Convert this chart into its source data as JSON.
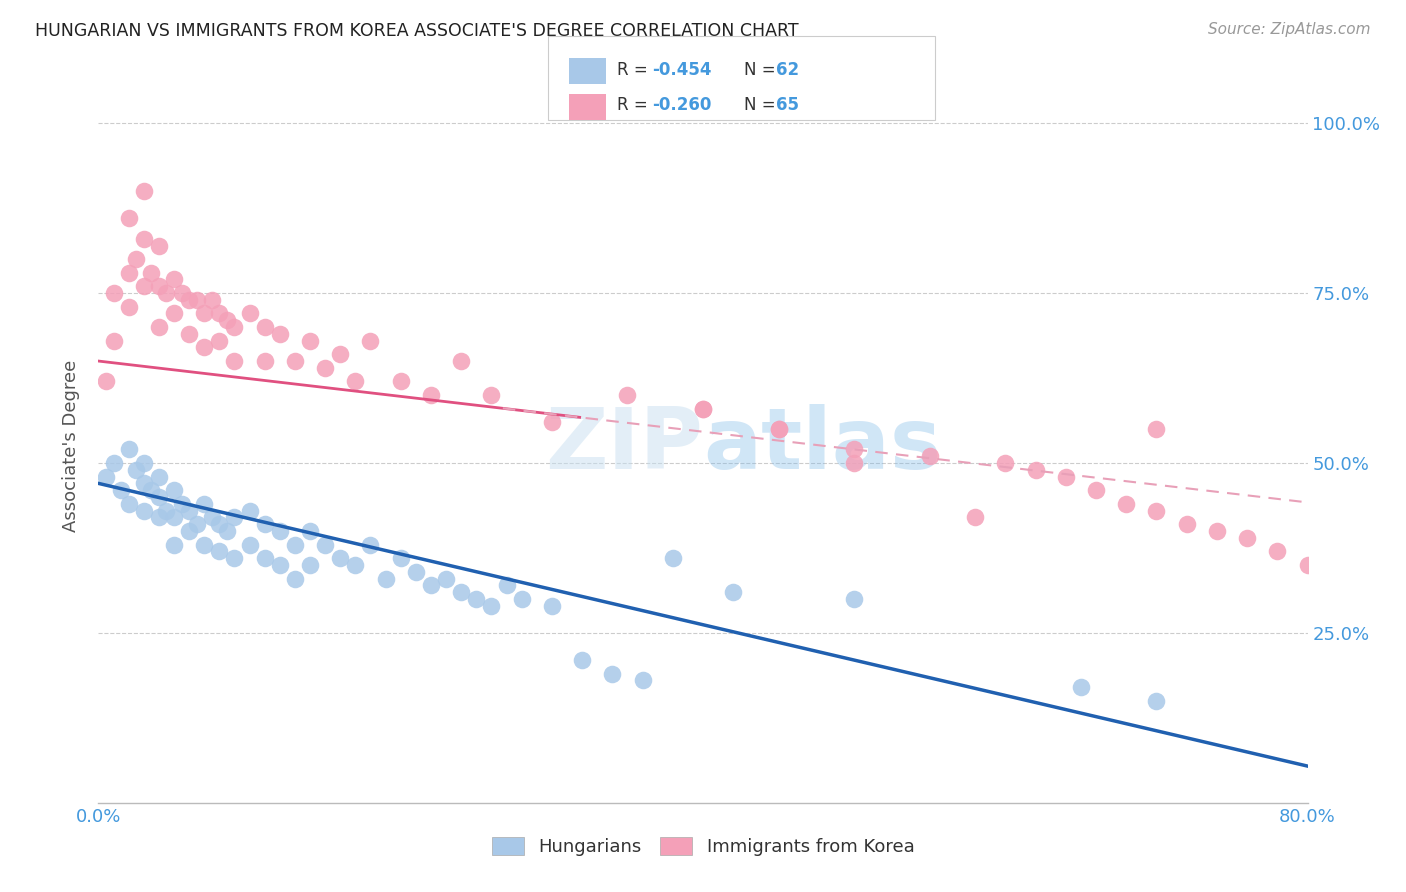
{
  "title": "HUNGARIAN VS IMMIGRANTS FROM KOREA ASSOCIATE'S DEGREE CORRELATION CHART",
  "source": "Source: ZipAtlas.com",
  "ylabel": "Associate's Degree",
  "watermark": "ZIPatlas",
  "legend_label1": "Hungarians",
  "legend_label2": "Immigrants from Korea",
  "color_blue": "#a8c8e8",
  "color_pink": "#f4a0b8",
  "color_blue_line": "#2060b0",
  "color_pink_line": "#e05080",
  "color_pink_dash": "#e8a0b8",
  "color_axis_labels": "#4499dd",
  "color_grid": "#cccccc",
  "blue_intercept": 0.47,
  "blue_slope": -0.52,
  "pink_intercept": 0.65,
  "pink_slope": -0.26,
  "blue_x": [
    0.005,
    0.01,
    0.015,
    0.02,
    0.02,
    0.025,
    0.03,
    0.03,
    0.03,
    0.035,
    0.04,
    0.04,
    0.04,
    0.045,
    0.05,
    0.05,
    0.05,
    0.055,
    0.06,
    0.06,
    0.065,
    0.07,
    0.07,
    0.075,
    0.08,
    0.08,
    0.085,
    0.09,
    0.09,
    0.1,
    0.1,
    0.11,
    0.11,
    0.12,
    0.12,
    0.13,
    0.13,
    0.14,
    0.14,
    0.15,
    0.16,
    0.17,
    0.18,
    0.19,
    0.2,
    0.21,
    0.22,
    0.23,
    0.24,
    0.25,
    0.26,
    0.27,
    0.28,
    0.3,
    0.32,
    0.34,
    0.36,
    0.38,
    0.42,
    0.5,
    0.65,
    0.7
  ],
  "blue_y": [
    0.48,
    0.5,
    0.46,
    0.52,
    0.44,
    0.49,
    0.47,
    0.43,
    0.5,
    0.46,
    0.45,
    0.42,
    0.48,
    0.43,
    0.46,
    0.42,
    0.38,
    0.44,
    0.43,
    0.4,
    0.41,
    0.44,
    0.38,
    0.42,
    0.41,
    0.37,
    0.4,
    0.42,
    0.36,
    0.43,
    0.38,
    0.41,
    0.36,
    0.4,
    0.35,
    0.38,
    0.33,
    0.4,
    0.35,
    0.38,
    0.36,
    0.35,
    0.38,
    0.33,
    0.36,
    0.34,
    0.32,
    0.33,
    0.31,
    0.3,
    0.29,
    0.32,
    0.3,
    0.29,
    0.21,
    0.19,
    0.18,
    0.36,
    0.31,
    0.3,
    0.17,
    0.15
  ],
  "pink_x": [
    0.005,
    0.01,
    0.01,
    0.02,
    0.02,
    0.02,
    0.025,
    0.03,
    0.03,
    0.03,
    0.035,
    0.04,
    0.04,
    0.04,
    0.045,
    0.05,
    0.05,
    0.055,
    0.06,
    0.06,
    0.065,
    0.07,
    0.07,
    0.075,
    0.08,
    0.08,
    0.085,
    0.09,
    0.09,
    0.1,
    0.11,
    0.11,
    0.12,
    0.13,
    0.14,
    0.15,
    0.16,
    0.17,
    0.18,
    0.2,
    0.22,
    0.24,
    0.26,
    0.3,
    0.35,
    0.4,
    0.45,
    0.5,
    0.55,
    0.6,
    0.62,
    0.64,
    0.66,
    0.68,
    0.7,
    0.72,
    0.74,
    0.76,
    0.78,
    0.8,
    0.4,
    0.45,
    0.5,
    0.58,
    0.7
  ],
  "pink_y": [
    0.62,
    0.68,
    0.75,
    0.78,
    0.86,
    0.73,
    0.8,
    0.9,
    0.83,
    0.76,
    0.78,
    0.82,
    0.76,
    0.7,
    0.75,
    0.77,
    0.72,
    0.75,
    0.74,
    0.69,
    0.74,
    0.72,
    0.67,
    0.74,
    0.72,
    0.68,
    0.71,
    0.7,
    0.65,
    0.72,
    0.7,
    0.65,
    0.69,
    0.65,
    0.68,
    0.64,
    0.66,
    0.62,
    0.68,
    0.62,
    0.6,
    0.65,
    0.6,
    0.56,
    0.6,
    0.58,
    0.55,
    0.52,
    0.51,
    0.5,
    0.49,
    0.48,
    0.46,
    0.44,
    0.43,
    0.41,
    0.4,
    0.39,
    0.37,
    0.35,
    0.58,
    0.55,
    0.5,
    0.42,
    0.55
  ]
}
